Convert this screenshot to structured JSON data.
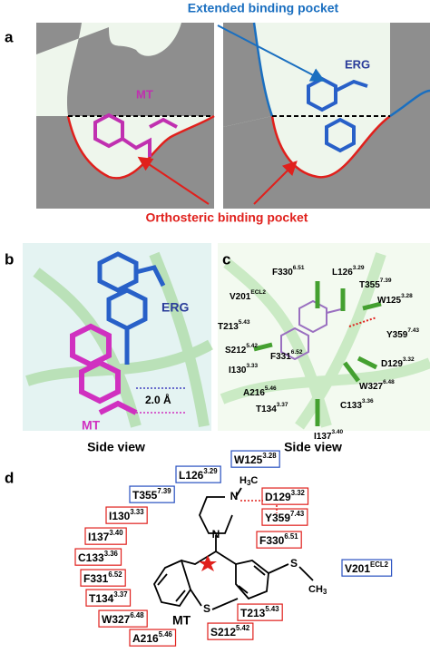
{
  "panel_labels": [
    "a",
    "b",
    "c",
    "d"
  ],
  "panel_a": {
    "extended_label": "Extended binding pocket",
    "orthosteric_label": "Orthosteric binding pocket",
    "ligand_left": "MT",
    "ligand_right": "ERG"
  },
  "panel_b": {
    "erg": "ERG",
    "mt": "MT",
    "distance": "2.0 Å",
    "caption": "Side view"
  },
  "panel_c": {
    "caption": "Side view",
    "residues": [
      {
        "name": "F330",
        "sup": "6.51"
      },
      {
        "name": "L126",
        "sup": "3.29"
      },
      {
        "name": "V201",
        "sup": "ECL2"
      },
      {
        "name": "T355",
        "sup": "7.39"
      },
      {
        "name": "W125",
        "sup": "3.28"
      },
      {
        "name": "Y359",
        "sup": "7.43"
      },
      {
        "name": "T213",
        "sup": "5.43"
      },
      {
        "name": "F331",
        "sup": "6.52"
      },
      {
        "name": "S212",
        "sup": "5.42"
      },
      {
        "name": "D129",
        "sup": "3.32"
      },
      {
        "name": "I130",
        "sup": "3.33"
      },
      {
        "name": "W327",
        "sup": "6.48"
      },
      {
        "name": "A216",
        "sup": "5.46"
      },
      {
        "name": "T134",
        "sup": "3.37"
      },
      {
        "name": "C133",
        "sup": "3.36"
      },
      {
        "name": "I137",
        "sup": "3.40"
      }
    ]
  },
  "panel_d": {
    "residues": [
      {
        "name": "W125",
        "sup": "3.28",
        "box": "blue"
      },
      {
        "name": "L126",
        "sup": "3.29",
        "box": "blue"
      },
      {
        "name": "T355",
        "sup": "7.39",
        "box": "blue"
      },
      {
        "name": "I130",
        "sup": "3.33",
        "box": "red"
      },
      {
        "name": "I137",
        "sup": "3.40",
        "box": "red"
      },
      {
        "name": "C133",
        "sup": "3.36",
        "box": "red"
      },
      {
        "name": "F331",
        "sup": "6.52",
        "box": "red"
      },
      {
        "name": "T134",
        "sup": "3.37",
        "box": "red"
      },
      {
        "name": "W327",
        "sup": "6.48",
        "box": "red"
      },
      {
        "name": "A216",
        "sup": "5.46",
        "box": "red"
      },
      {
        "name": "D129",
        "sup": "3.32",
        "box": "red"
      },
      {
        "name": "Y359",
        "sup": "7.43",
        "box": "red"
      },
      {
        "name": "F330",
        "sup": "6.51",
        "box": "red"
      },
      {
        "name": "V201",
        "sup": "ECL2",
        "box": "blue"
      },
      {
        "name": "T213",
        "sup": "5.43",
        "box": "red"
      },
      {
        "name": "S212",
        "sup": "5.42",
        "box": "red"
      }
    ],
    "molecule": {
      "name": "MT",
      "n_top": "N",
      "methyl_h": "H",
      "methyl_sub": "3",
      "methyl_c": "C",
      "n_bottom": "N",
      "s_ring": "S",
      "s_chain": "S",
      "ch3_c": "CH",
      "ch3_sub": "3"
    }
  }
}
